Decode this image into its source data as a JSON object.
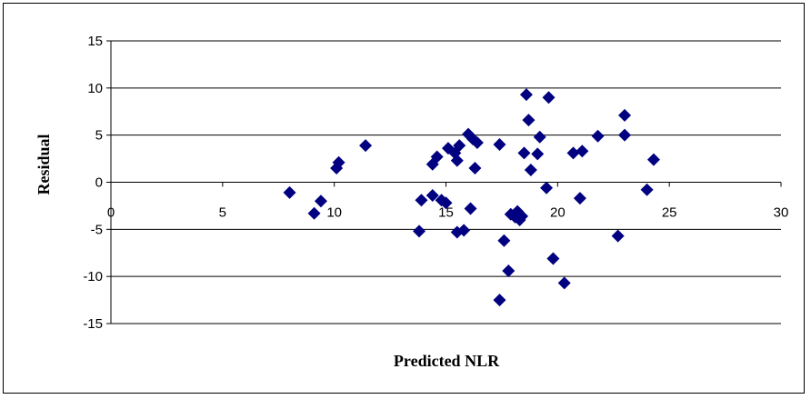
{
  "chart_data": {
    "type": "scatter",
    "title": "",
    "xlabel": "Predicted NLR",
    "ylabel": "Residual",
    "xlim": [
      0,
      30
    ],
    "ylim": [
      -15,
      15
    ],
    "x_ticks": [
      0,
      5,
      10,
      15,
      20,
      25,
      30
    ],
    "y_ticks": [
      15,
      10,
      5,
      0,
      -5,
      -10,
      -15
    ],
    "grid": "horizontal major gridlines",
    "legend": "none",
    "marker": "diamond",
    "marker_color": "#000080",
    "points": [
      {
        "x": 8.0,
        "y": -1.1
      },
      {
        "x": 9.1,
        "y": -3.3
      },
      {
        "x": 9.4,
        "y": -2.0
      },
      {
        "x": 10.1,
        "y": 1.5
      },
      {
        "x": 10.2,
        "y": 2.1
      },
      {
        "x": 11.4,
        "y": 3.9
      },
      {
        "x": 13.8,
        "y": -5.2
      },
      {
        "x": 13.9,
        "y": -1.9
      },
      {
        "x": 14.4,
        "y": -1.4
      },
      {
        "x": 14.4,
        "y": 1.9
      },
      {
        "x": 14.6,
        "y": 2.7
      },
      {
        "x": 14.8,
        "y": -1.9
      },
      {
        "x": 15.0,
        "y": -2.2
      },
      {
        "x": 15.1,
        "y": 3.6
      },
      {
        "x": 15.4,
        "y": 3.1
      },
      {
        "x": 15.5,
        "y": 2.3
      },
      {
        "x": 15.5,
        "y": -5.3
      },
      {
        "x": 15.6,
        "y": 3.9
      },
      {
        "x": 15.8,
        "y": -5.1
      },
      {
        "x": 16.0,
        "y": 5.1
      },
      {
        "x": 16.1,
        "y": -2.8
      },
      {
        "x": 16.2,
        "y": 4.6
      },
      {
        "x": 16.4,
        "y": 4.2
      },
      {
        "x": 16.3,
        "y": 1.5
      },
      {
        "x": 17.4,
        "y": 4.0
      },
      {
        "x": 17.4,
        "y": -12.5
      },
      {
        "x": 17.6,
        "y": -6.2
      },
      {
        "x": 17.8,
        "y": -9.4
      },
      {
        "x": 17.9,
        "y": -3.4
      },
      {
        "x": 18.1,
        "y": -3.7
      },
      {
        "x": 18.2,
        "y": -3.1
      },
      {
        "x": 18.3,
        "y": -4.0
      },
      {
        "x": 18.4,
        "y": -3.6
      },
      {
        "x": 18.5,
        "y": 3.1
      },
      {
        "x": 18.6,
        "y": 9.3
      },
      {
        "x": 18.7,
        "y": 6.6
      },
      {
        "x": 18.8,
        "y": 1.3
      },
      {
        "x": 19.1,
        "y": 3.0
      },
      {
        "x": 19.2,
        "y": 4.8
      },
      {
        "x": 19.5,
        "y": -0.6
      },
      {
        "x": 19.6,
        "y": 9.0
      },
      {
        "x": 19.8,
        "y": -8.1
      },
      {
        "x": 20.3,
        "y": -10.7
      },
      {
        "x": 20.7,
        "y": 3.1
      },
      {
        "x": 21.0,
        "y": -1.7
      },
      {
        "x": 21.1,
        "y": 3.3
      },
      {
        "x": 21.8,
        "y": 4.9
      },
      {
        "x": 22.7,
        "y": -5.7
      },
      {
        "x": 23.0,
        "y": 7.1
      },
      {
        "x": 23.0,
        "y": 5.0
      },
      {
        "x": 24.0,
        "y": -0.8
      },
      {
        "x": 24.3,
        "y": 2.4
      }
    ]
  }
}
